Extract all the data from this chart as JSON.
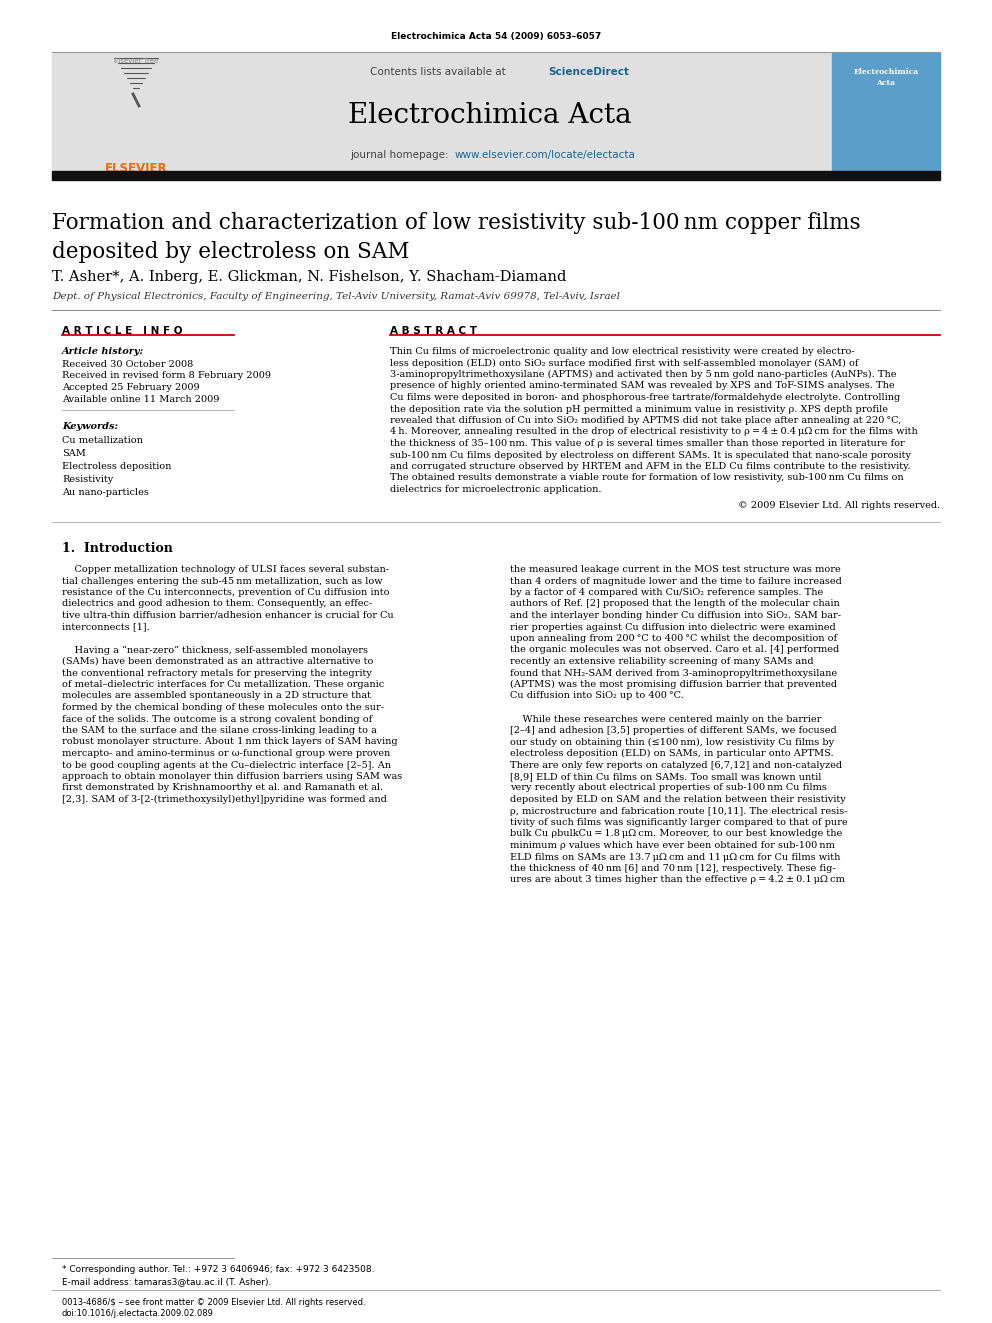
{
  "journal_header": "Electrochimica Acta 54 (2009) 6053–6057",
  "contents_line": "Contents lists available at ",
  "sciencedirect": "ScienceDirect",
  "science_direct_color": "#1a6496",
  "journal_name": "Electrochimica Acta",
  "journal_url_prefix": "journal homepage: ",
  "journal_url": "www.elsevier.com/locate/electacta",
  "journal_url_color": "#1a6496",
  "header_bg": "#e0e0e0",
  "title": "Formation and characterization of low resistivity sub-100 nm copper films\ndeposited by electroless on SAM",
  "authors": "T. Asher*, A. Inberg, E. Glickman, N. Fishelson, Y. Shacham-Diamand",
  "affiliation": "Dept. of Physical Electronics, Faculty of Engineering, Tel-Aviv University, Ramat-Aviv 69978, Tel-Aviv, Israel",
  "article_history_label": "Article history:",
  "received1": "Received 30 October 2008",
  "received2": "Received in revised form 8 February 2009",
  "accepted": "Accepted 25 February 2009",
  "available": "Available online 11 March 2009",
  "keywords_label": "Keywords:",
  "keywords": [
    "Cu metallization",
    "SAM",
    "Electroless deposition",
    "Resistivity",
    "Au nano-particles"
  ],
  "abstract_lines": [
    "Thin Cu films of microelectronic quality and low electrical resistivity were created by electro-",
    "less deposition (ELD) onto SiO₂ surface modified first with self-assembled monolayer (SAM) of",
    "3-aminopropyltrimethoxysilane (APTMS) and activated then by 5 nm gold nano-particles (AuNPs). The",
    "presence of highly oriented amino-terminated SAM was revealed by XPS and ToF-SIMS analyses. The",
    "Cu films were deposited in boron- and phosphorous-free tartrate/formaldehyde electrolyte. Controlling",
    "the deposition rate via the solution pH permitted a minimum value in resistivity ρ. XPS depth profile",
    "revealed that diffusion of Cu into SiO₂ modified by APTMS did not take place after annealing at 220 °C,",
    "4 h. Moreover, annealing resulted in the drop of electrical resistivity to ρ = 4 ± 0.4 μΩ cm for the films with",
    "the thickness of 35–100 nm. This value of ρ is several times smaller than those reported in literature for",
    "sub-100 nm Cu films deposited by electroless on different SAMs. It is speculated that nano-scale porosity",
    "and corrugated structure observed by HRTEM and AFM in the ELD Cu films contribute to the resistivity.",
    "The obtained results demonstrate a viable route for formation of low resistivity, sub-100 nm Cu films on",
    "dielectrics for microelectronic application."
  ],
  "copyright": "© 2009 Elsevier Ltd. All rights reserved.",
  "intro_col1_lines": [
    "    Copper metallization technology of ULSI faces several substan-",
    "tial challenges entering the sub-45 nm metallization, such as low",
    "resistance of the Cu interconnects, prevention of Cu diffusion into",
    "dielectrics and good adhesion to them. Consequently, an effec-",
    "tive ultra-thin diffusion barrier/adhesion enhancer is crucial for Cu",
    "interconnects [1].",
    "",
    "    Having a “near-zero” thickness, self-assembled monolayers",
    "(SAMs) have been demonstrated as an attractive alternative to",
    "the conventional refractory metals for preserving the integrity",
    "of metal–dielectric interfaces for Cu metallization. These organic",
    "molecules are assembled spontaneously in a 2D structure that",
    "formed by the chemical bonding of these molecules onto the sur-",
    "face of the solids. The outcome is a strong covalent bonding of",
    "the SAM to the surface and the silane cross-linking leading to a",
    "robust monolayer structure. About 1 nm thick layers of SAM having",
    "mercapto- and amino-terminus or ω-functional group were proven",
    "to be good coupling agents at the Cu–dielectric interface [2–5]. An",
    "approach to obtain monolayer thin diffusion barriers using SAM was",
    "first demonstrated by Krishnamoorthy et al. and Ramanath et al.",
    "[2,3]. SAM of 3-[2-(trimethoxysilyl)ethyl]pyridine was formed and"
  ],
  "intro_col2_lines": [
    "the measured leakage current in the MOS test structure was more",
    "than 4 orders of magnitude lower and the time to failure increased",
    "by a factor of 4 compared with Cu/SiO₂ reference samples. The",
    "authors of Ref. [2] proposed that the length of the molecular chain",
    "and the interlayer bonding hinder Cu diffusion into SiO₂. SAM bar-",
    "rier properties against Cu diffusion into dielectric were examined",
    "upon annealing from 200 °C to 400 °C whilst the decomposition of",
    "the organic molecules was not observed. Caro et al. [4] performed",
    "recently an extensive reliability screening of many SAMs and",
    "found that NH₂-SAM derived from 3-aminopropyltrimethoxysilane",
    "(APTMS) was the most promising diffusion barrier that prevented",
    "Cu diffusion into SiO₂ up to 400 °C.",
    "",
    "    While these researches were centered mainly on the barrier",
    "[2–4] and adhesion [3,5] properties of different SAMs, we focused",
    "our study on obtaining thin (≤100 nm), low resistivity Cu films by",
    "electroless deposition (ELD) on SAMs, in particular onto APTMS.",
    "There are only few reports on catalyzed [6,7,12] and non-catalyzed",
    "[8,9] ELD of thin Cu films on SAMs. Too small was known until",
    "very recently about electrical properties of sub-100 nm Cu films",
    "deposited by ELD on SAM and the relation between their resistivity",
    "ρ, microstructure and fabrication route [10,11]. The electrical resis-",
    "tivity of such films was significantly larger compared to that of pure",
    "bulk Cu ρbulkCu = 1.8 μΩ cm. Moreover, to our best knowledge the",
    "minimum ρ values which have ever been obtained for sub-100 nm",
    "ELD films on SAMs are 13.7 μΩ cm and 11 μΩ cm for Cu films with",
    "the thickness of 40 nm [6] and 70 nm [12], respectively. These fig-",
    "ures are about 3 times higher than the effective ρ = 4.2 ± 0.1 μΩ cm"
  ],
  "footer_line1": "0013-4686/$ – see front matter © 2009 Elsevier Ltd. All rights reserved.",
  "footer_line2": "doi:10.1016/j.electacta.2009.02.089",
  "footnote_star": "* Corresponding author. Tel.: +972 3 6406946; fax: +972 3 6423508.",
  "footnote_email": "E-mail address: tamaras3@tau.ac.il (T. Asher).",
  "bg_color": "#ffffff",
  "red_color": "#cc0000",
  "elsevier_orange": "#ff6600",
  "cover_blue": "#5a9ec9"
}
